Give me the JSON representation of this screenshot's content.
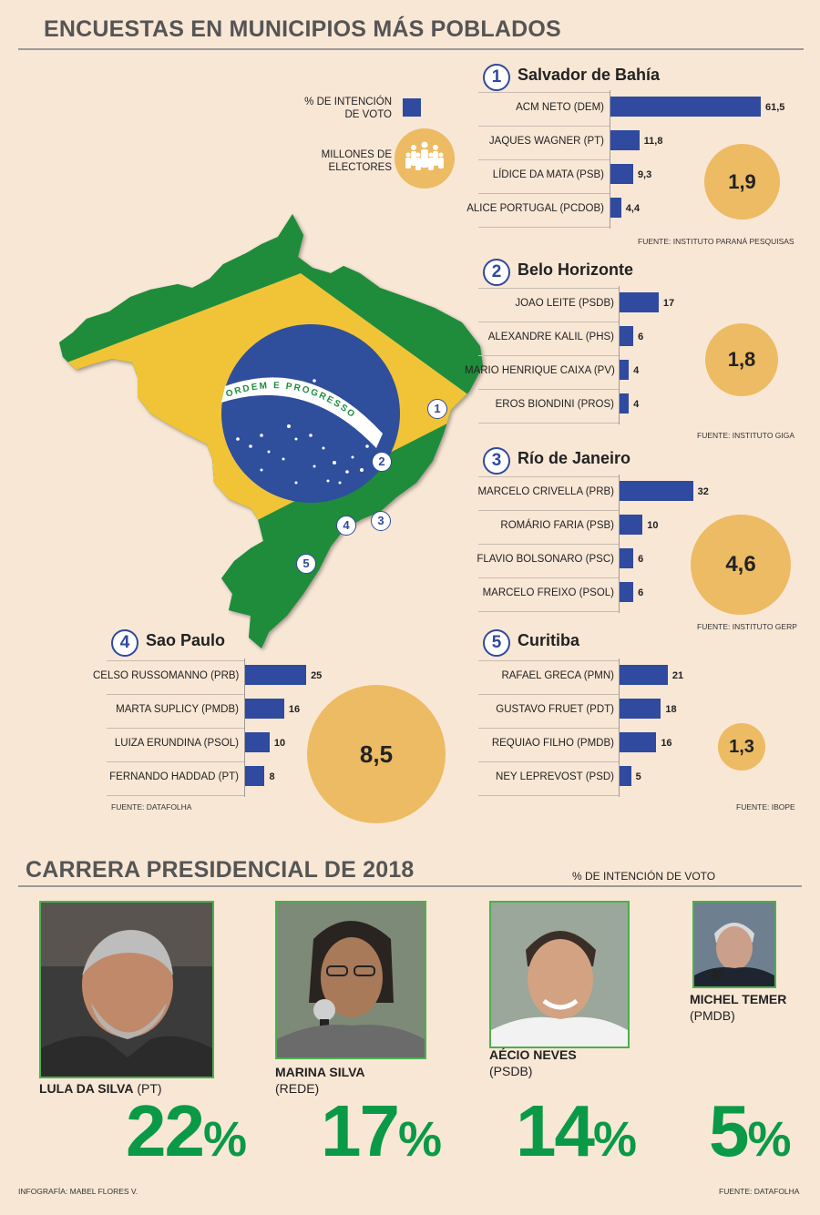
{
  "header": {
    "title": "ENCUESTAS EN MUNICIPIOS MÁS POBLADOS"
  },
  "legend": {
    "vote_label": "% DE INTENCIÓN DE VOTO",
    "electors_label": "MILLONES DE ELECTORES",
    "bar_color": "#2f4a9e",
    "circle_color": "#ecbb63"
  },
  "flag": {
    "motto": "ORDEM E PROGRESSO"
  },
  "map_markers": [
    "1",
    "2",
    "3",
    "4",
    "5"
  ],
  "chart_data": [
    {
      "type": "bar",
      "number": "1",
      "city": "Salvador de Bahía",
      "categories": [
        "ACM NETO (DEM)",
        "JAQUES WAGNER (PT)",
        "LÍDICE DA MATA (PSB)",
        "ALICE PORTUGAL (PCDOB)"
      ],
      "values": [
        61.5,
        11.8,
        9.3,
        4.4
      ],
      "value_labels": [
        "61,5",
        "11,8",
        "9,3",
        "4,4"
      ],
      "electors": "1,9",
      "source": "FUENTE: INSTITUTO PARANÁ PESQUISAS"
    },
    {
      "type": "bar",
      "number": "2",
      "city": "Belo Horizonte",
      "categories": [
        "JOAO LEITE (PSDB)",
        "ALEXANDRE KALIL (PHS)",
        "MARIO HENRIQUE CAIXA (PV)",
        "EROS BIONDINI (PROS)"
      ],
      "values": [
        17,
        6,
        4,
        4
      ],
      "value_labels": [
        "17",
        "6",
        "4",
        "4"
      ],
      "electors": "1,8",
      "source": "FUENTE: INSTITUTO GIGA"
    },
    {
      "type": "bar",
      "number": "3",
      "city": "Río de Janeiro",
      "categories": [
        "MARCELO CRIVELLA (PRB)",
        "ROMÁRIO FARIA (PSB)",
        "FLAVIO BOLSONARO (PSC)",
        "MARCELO FREIXO (PSOL)"
      ],
      "values": [
        32,
        10,
        6,
        6
      ],
      "value_labels": [
        "32",
        "10",
        "6",
        "6"
      ],
      "electors": "4,6",
      "source": "FUENTE: INSTITUTO GERP"
    },
    {
      "type": "bar",
      "number": "4",
      "city": "Sao Paulo",
      "categories": [
        "CELSO RUSSOMANNO (PRB)",
        "MARTA SUPLICY (PMDB)",
        "LUIZA ERUNDINA (PSOL)",
        "FERNANDO HADDAD (PT)"
      ],
      "values": [
        25,
        16,
        10,
        8
      ],
      "value_labels": [
        "25",
        "16",
        "10",
        "8"
      ],
      "electors": "8,5",
      "source": "FUENTE: DATAFOLHA"
    },
    {
      "type": "bar",
      "number": "5",
      "city": "Curitiba",
      "categories": [
        "RAFAEL GRECA (PMN)",
        "GUSTAVO FRUET (PDT)",
        "REQUIAO FILHO (PMDB)",
        "NEY LEPREVOST (PSD)"
      ],
      "values": [
        21,
        18,
        16,
        5
      ],
      "value_labels": [
        "21",
        "18",
        "16",
        "5"
      ],
      "electors": "1,3",
      "source": "FUENTE: IBOPE"
    }
  ],
  "presidential": {
    "title": "CARRERA PRESIDENCIAL DE 2018",
    "subtitle": "% DE INTENCIÓN DE VOTO",
    "candidates": [
      {
        "name": "LULA DA SILVA",
        "party": "(PT)",
        "value": "22",
        "pct_sign": "%"
      },
      {
        "name": "MARINA SILVA",
        "party": "(REDE)",
        "value": "17",
        "pct_sign": "%"
      },
      {
        "name": "AÉCIO NEVES",
        "party": "(PSDB)",
        "value": "14",
        "pct_sign": "%"
      },
      {
        "name": "MICHEL TEMER",
        "party": "(PMDB)",
        "value": "5",
        "pct_sign": "%"
      }
    ],
    "source": "FUENTE: DATAFOLHA",
    "percent_color": "#0a9a47"
  },
  "credit": "INFOGRAFÍA: MABEL FLORES V."
}
